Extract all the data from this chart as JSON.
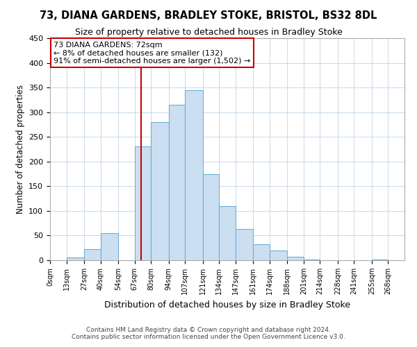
{
  "title1": "73, DIANA GARDENS, BRADLEY STOKE, BRISTOL, BS32 8DL",
  "title2": "Size of property relative to detached houses in Bradley Stoke",
  "xlabel": "Distribution of detached houses by size in Bradley Stoke",
  "ylabel": "Number of detached properties",
  "bin_edges": [
    0,
    13,
    27,
    40,
    54,
    67,
    80,
    94,
    107,
    121,
    134,
    147,
    161,
    174,
    188,
    201,
    214,
    228,
    241,
    255,
    268,
    281
  ],
  "bin_labels": [
    "0sqm",
    "13sqm",
    "27sqm",
    "40sqm",
    "54sqm",
    "67sqm",
    "80sqm",
    "94sqm",
    "107sqm",
    "121sqm",
    "134sqm",
    "147sqm",
    "161sqm",
    "174sqm",
    "188sqm",
    "201sqm",
    "214sqm",
    "228sqm",
    "241sqm",
    "255sqm",
    "268sqm"
  ],
  "bar_values": [
    0,
    6,
    22,
    55,
    0,
    230,
    280,
    315,
    345,
    175,
    110,
    63,
    32,
    19,
    7,
    2,
    0,
    0,
    0,
    1,
    0
  ],
  "property_line_x": 72,
  "annotation_title": "73 DIANA GARDENS: 72sqm",
  "annotation_line1": "← 8% of detached houses are smaller (132)",
  "annotation_line2": "91% of semi-detached houses are larger (1,502) →",
  "bar_fill_color": "#ccdff2",
  "bar_edge_color": "#6aaed6",
  "line_color": "#cc0000",
  "annotation_box_edge": "#cc0000",
  "ylim": [
    0,
    450
  ],
  "xlim": [
    0,
    281
  ],
  "footer1": "Contains HM Land Registry data © Crown copyright and database right 2024.",
  "footer2": "Contains public sector information licensed under the Open Government Licence v3.0."
}
